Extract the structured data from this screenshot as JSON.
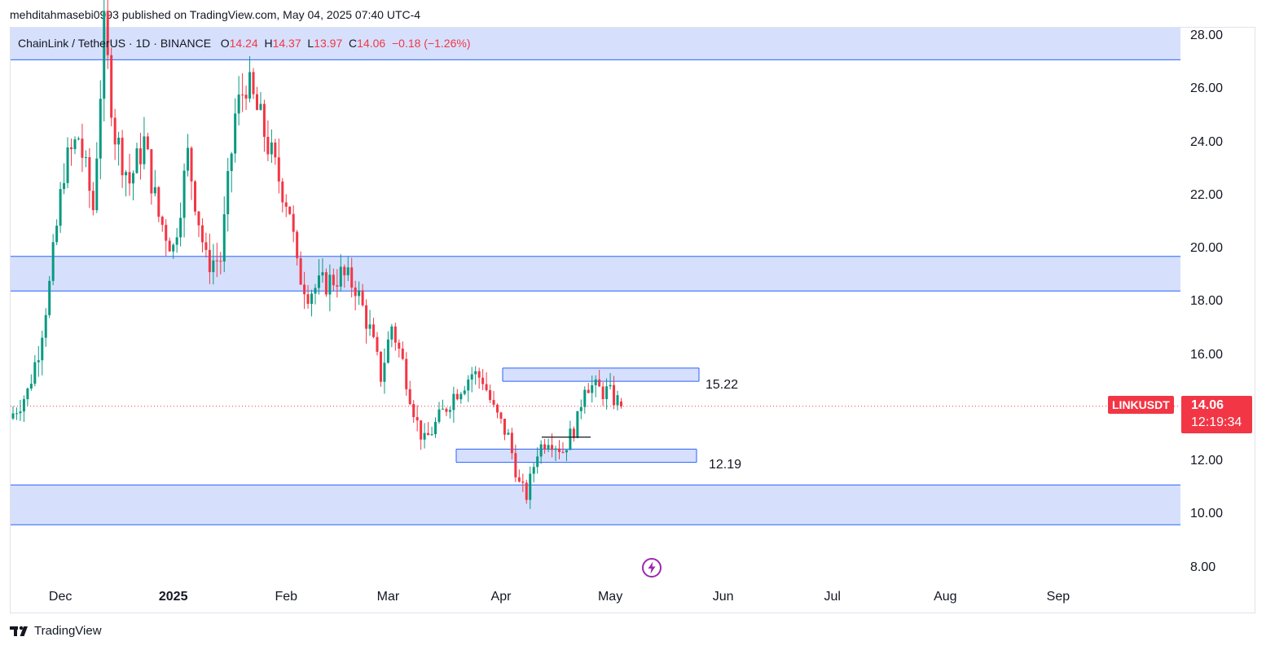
{
  "header": {
    "published_line": "mehditahmasebi0993 published on TradingView.com, May 04, 2025 07:40 UTC-4"
  },
  "legend": {
    "symbol": "ChainLink / TetherUS · 1D · BINANCE",
    "open_key": "O",
    "open": "14.24",
    "high_key": "H",
    "high": "14.37",
    "low_key": "L",
    "low": "13.97",
    "close_key": "C",
    "close": "14.06",
    "change": "−0.18 (−1.26%)"
  },
  "price_axis": [
    "28.00",
    "26.00",
    "24.00",
    "22.00",
    "20.00",
    "18.00",
    "16.00",
    "12.00",
    "10.00",
    "8.00"
  ],
  "time_axis": [
    {
      "label": "Dec",
      "bold": false
    },
    {
      "label": "2025",
      "bold": true
    },
    {
      "label": "Feb",
      "bold": false
    },
    {
      "label": "Mar",
      "bold": false
    },
    {
      "label": "Apr",
      "bold": false
    },
    {
      "label": "May",
      "bold": false
    },
    {
      "label": "Jun",
      "bold": false
    },
    {
      "label": "Jul",
      "bold": false
    },
    {
      "label": "Aug",
      "bold": false
    },
    {
      "label": "Sep",
      "bold": false
    }
  ],
  "zone_labels": {
    "upper": "15.22",
    "lower": "12.19"
  },
  "last_price": {
    "ticker": "LINKUSDT",
    "price": "14.06",
    "countdown": "12:19:34"
  },
  "footer": {
    "brand": "TradingView"
  },
  "colors": {
    "up": "#089981",
    "down": "#f23645",
    "zone_fill": "#d6e0fd",
    "zone_border": "#2962ff"
  },
  "chart_data": {
    "type": "candlestick",
    "symbol": "LINKUSDT",
    "interval": "1D",
    "ylim": [
      7.5,
      28.3
    ],
    "zones": [
      {
        "low": 27.1,
        "high": 28.4,
        "extends": "full"
      },
      {
        "low": 18.4,
        "high": 19.7,
        "extends": "full"
      },
      {
        "low": 15.0,
        "high": 15.5,
        "extends": "partial"
      },
      {
        "low": 11.95,
        "high": 12.45,
        "extends": "partial"
      },
      {
        "low": 9.6,
        "high": 11.1,
        "extends": "full"
      }
    ],
    "anchors": [
      {
        "date": "2024-11-18",
        "price": 13.8
      },
      {
        "date": "2024-11-22",
        "price": 14.6
      },
      {
        "date": "2024-11-25",
        "price": 16.2
      },
      {
        "date": "2024-11-28",
        "price": 18.6
      },
      {
        "date": "2024-12-02",
        "price": 23.0
      },
      {
        "date": "2024-12-06",
        "price": 24.2
      },
      {
        "date": "2024-12-10",
        "price": 21.5
      },
      {
        "date": "2024-12-13",
        "price": 28.2
      },
      {
        "date": "2024-12-16",
        "price": 24.3
      },
      {
        "date": "2024-12-20",
        "price": 22.5
      },
      {
        "date": "2024-12-24",
        "price": 24.0
      },
      {
        "date": "2024-12-28",
        "price": 21.2
      },
      {
        "date": "2025-01-01",
        "price": 20.0
      },
      {
        "date": "2025-01-05",
        "price": 23.5
      },
      {
        "date": "2025-01-10",
        "price": 19.5
      },
      {
        "date": "2025-01-14",
        "price": 19.6
      },
      {
        "date": "2025-01-18",
        "price": 25.0
      },
      {
        "date": "2025-01-21",
        "price": 26.3
      },
      {
        "date": "2025-01-25",
        "price": 24.8
      },
      {
        "date": "2025-01-29",
        "price": 23.0
      },
      {
        "date": "2025-02-02",
        "price": 21.5
      },
      {
        "date": "2025-02-04",
        "price": 19.2
      },
      {
        "date": "2025-02-07",
        "price": 18.4
      },
      {
        "date": "2025-02-12",
        "price": 18.7
      },
      {
        "date": "2025-02-16",
        "price": 19.0
      },
      {
        "date": "2025-02-20",
        "price": 18.6
      },
      {
        "date": "2025-02-24",
        "price": 16.9
      },
      {
        "date": "2025-02-27",
        "price": 15.2
      },
      {
        "date": "2025-03-02",
        "price": 17.1
      },
      {
        "date": "2025-03-05",
        "price": 15.7
      },
      {
        "date": "2025-03-09",
        "price": 13.4
      },
      {
        "date": "2025-03-11",
        "price": 12.7
      },
      {
        "date": "2025-03-15",
        "price": 13.6
      },
      {
        "date": "2025-03-19",
        "price": 14.5
      },
      {
        "date": "2025-03-24",
        "price": 15.3
      },
      {
        "date": "2025-03-27",
        "price": 15.1
      },
      {
        "date": "2025-03-30",
        "price": 13.9
      },
      {
        "date": "2025-04-03",
        "price": 12.9
      },
      {
        "date": "2025-04-06",
        "price": 11.1
      },
      {
        "date": "2025-04-08",
        "price": 10.7
      },
      {
        "date": "2025-04-11",
        "price": 12.4
      },
      {
        "date": "2025-04-14",
        "price": 12.9
      },
      {
        "date": "2025-04-18",
        "price": 12.4
      },
      {
        "date": "2025-04-22",
        "price": 13.5
      },
      {
        "date": "2025-04-24",
        "price": 15.0
      },
      {
        "date": "2025-04-27",
        "price": 14.7
      },
      {
        "date": "2025-04-30",
        "price": 14.6
      },
      {
        "date": "2025-05-03",
        "price": 14.24
      },
      {
        "date": "2025-05-04",
        "price": 14.06
      }
    ],
    "last": {
      "open": 14.24,
      "high": 14.37,
      "low": 13.97,
      "close": 14.06
    }
  }
}
